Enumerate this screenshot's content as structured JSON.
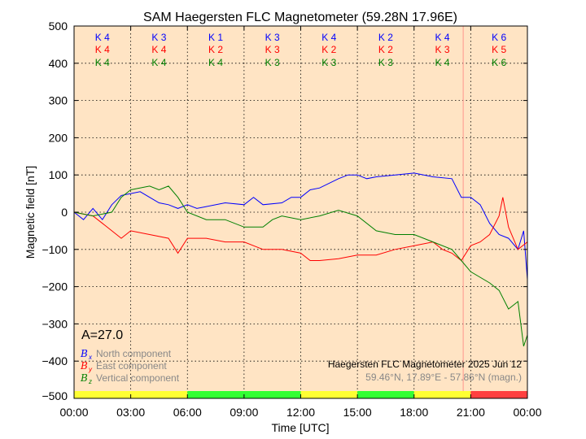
{
  "chart_data": {
    "type": "line",
    "title": "SAM Haegersten FLC Magnetometer (59.28N 17.96E)",
    "xlabel": "Time [UTC]",
    "ylabel": "Magnetic field [nT]",
    "xlim": [
      0,
      24
    ],
    "ylim": [
      -500,
      500
    ],
    "xticks": [
      "00:00",
      "03:00",
      "06:00",
      "09:00",
      "12:00",
      "15:00",
      "18:00",
      "21:00",
      "00:00"
    ],
    "yticks": [
      "500",
      "400",
      "300",
      "200",
      "100",
      "0",
      "−100",
      "−200",
      "−300",
      "−400",
      "−500"
    ],
    "grid": true,
    "background": "#ffe4c4",
    "marker_hour": 20.6,
    "k_indices": {
      "x": [
        "K 4",
        "K 3",
        "K 1",
        "K 3",
        "K 4",
        "K 2",
        "K 4",
        "K 6"
      ],
      "y": [
        "K 4",
        "K 4",
        "K 2",
        "K 3",
        "K 2",
        "K 2",
        "K 3",
        "K 5"
      ],
      "z": [
        "K 4",
        "K 4",
        "K 4",
        "K 3",
        "K 3",
        "K 3",
        "K 4",
        "K 6"
      ]
    },
    "status_bar": [
      {
        "from": 0,
        "to": 6,
        "color": "#ffff33"
      },
      {
        "from": 6,
        "to": 12,
        "color": "#33ff33"
      },
      {
        "from": 12,
        "to": 15,
        "color": "#ffff33"
      },
      {
        "from": 15,
        "to": 18,
        "color": "#33ff33"
      },
      {
        "from": 18,
        "to": 21,
        "color": "#ffff33"
      },
      {
        "from": 21,
        "to": 24,
        "color": "#ff4040"
      }
    ],
    "a_index": "A=27.0",
    "legend": [
      {
        "symbol": "B",
        "sub": "x",
        "label": "North component",
        "color": "#0000ff"
      },
      {
        "symbol": "B",
        "sub": "y",
        "label": "East component",
        "color": "#ff0000"
      },
      {
        "symbol": "B",
        "sub": "z",
        "label": "Vertical component",
        "color": "#008000"
      }
    ],
    "annotation_title": "Haegersten FLC Magnetometer 2025 Jun 12",
    "annotation_coords": "59.46°N, 17.89°E - 57.86°N (magn.)",
    "series": [
      {
        "name": "Bx",
        "color": "#0000ff",
        "x": [
          0,
          0.5,
          1,
          1.5,
          2,
          2.5,
          3,
          3.5,
          4,
          4.5,
          5,
          5.5,
          6,
          6.5,
          7,
          8,
          9,
          9.5,
          10,
          11,
          11.5,
          12,
          12.5,
          13,
          14,
          14.5,
          15,
          15.5,
          16,
          17,
          18,
          19,
          20,
          20.5,
          21,
          21.5,
          22,
          22.5,
          23,
          23.5,
          23.8,
          24
        ],
        "values": [
          0,
          -20,
          10,
          -20,
          20,
          45,
          50,
          55,
          40,
          25,
          20,
          10,
          20,
          10,
          15,
          25,
          20,
          40,
          20,
          25,
          40,
          40,
          60,
          65,
          90,
          100,
          100,
          90,
          95,
          100,
          105,
          95,
          90,
          40,
          40,
          20,
          -30,
          -60,
          -70,
          -100,
          -50,
          -180
        ]
      },
      {
        "name": "By",
        "color": "#ff0000",
        "x": [
          0,
          1,
          1.5,
          2,
          2.5,
          3,
          4,
          5,
          5.5,
          6,
          7,
          8,
          9,
          10,
          11,
          12,
          12.5,
          13,
          14,
          15,
          16,
          17,
          18,
          19,
          19.5,
          20,
          20.5,
          21,
          21.5,
          22,
          22.5,
          22.7,
          23,
          23.5,
          24
        ],
        "values": [
          0,
          -10,
          -30,
          -50,
          -70,
          -50,
          -60,
          -70,
          -110,
          -70,
          -70,
          -80,
          -80,
          -100,
          -100,
          -110,
          -130,
          -130,
          -125,
          -115,
          -115,
          -100,
          -90,
          -80,
          -100,
          -110,
          -130,
          -90,
          -80,
          -60,
          -10,
          40,
          -40,
          -100,
          -80
        ]
      },
      {
        "name": "Bz",
        "color": "#008000",
        "x": [
          0,
          1,
          2,
          2.5,
          3,
          4,
          4.5,
          5,
          5.5,
          6,
          7,
          8,
          9,
          10,
          10.5,
          11,
          12,
          13,
          14,
          15,
          16,
          17,
          18,
          19,
          20,
          20.5,
          21,
          22,
          22.5,
          23,
          23.5,
          23.8,
          24
        ],
        "values": [
          0,
          -10,
          0,
          40,
          60,
          70,
          60,
          70,
          40,
          0,
          -20,
          -20,
          -40,
          -40,
          -20,
          -10,
          -20,
          -10,
          5,
          -10,
          -50,
          -60,
          -60,
          -80,
          -100,
          -130,
          -160,
          -190,
          -210,
          -260,
          -240,
          -360,
          -330
        ]
      }
    ]
  }
}
